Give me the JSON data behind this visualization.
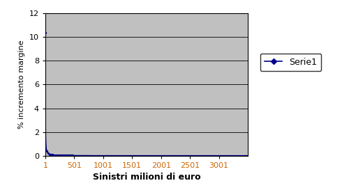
{
  "title": "",
  "xlabel": "Sinistri milioni di euro",
  "ylabel": "% incremento margine",
  "xlim": [
    1,
    3500
  ],
  "ylim": [
    0,
    12
  ],
  "yticks": [
    0,
    2,
    4,
    6,
    8,
    10,
    12
  ],
  "xticks": [
    1,
    501,
    1001,
    1501,
    2001,
    2501,
    3001
  ],
  "xtick_labels": [
    "1",
    "501",
    "1001",
    "1501",
    "2001",
    "2501",
    "3001"
  ],
  "curve_color": "#00008B",
  "plot_bg_color": "#C0C0C0",
  "fig_bg_color": "#FFFFFF",
  "legend_label": "Serie1",
  "legend_marker_color": "#00008B",
  "x_start": 1,
  "x_end": 3500,
  "num_points": 3500,
  "scale_factor": 10.35,
  "xlabel_fontsize": 9,
  "ylabel_fontsize": 8,
  "tick_fontsize": 8,
  "legend_fontsize": 9,
  "xtick_color": "#CC6600",
  "ytick_color": "#000000"
}
